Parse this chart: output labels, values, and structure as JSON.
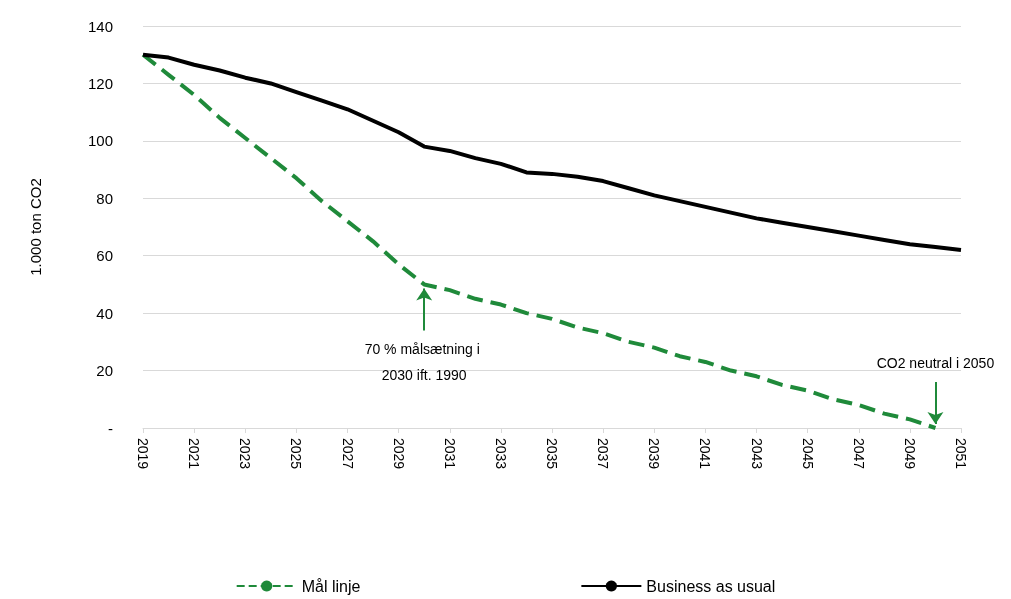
{
  "chart_data": {
    "type": "line",
    "ylabel": "1.000 ton CO2",
    "x": [
      2019,
      2020,
      2021,
      2022,
      2023,
      2024,
      2025,
      2026,
      2027,
      2028,
      2029,
      2030,
      2031,
      2032,
      2033,
      2034,
      2035,
      2036,
      2037,
      2038,
      2039,
      2040,
      2041,
      2042,
      2043,
      2044,
      2045,
      2046,
      2047,
      2048,
      2049,
      2050,
      2051
    ],
    "series": [
      {
        "name": "Mål linje",
        "color": "#1f8a3a",
        "line_style": "dashed",
        "values": [
          130,
          123,
          116,
          108,
          101,
          94,
          87,
          79,
          72,
          65,
          57,
          50,
          48,
          45,
          43,
          40,
          38,
          35,
          33,
          30,
          28,
          25,
          23,
          20,
          18,
          15,
          13,
          10,
          8,
          5,
          3,
          0,
          null
        ]
      },
      {
        "name": "Business as usual",
        "color": "#000000",
        "line_style": "solid",
        "values": [
          130,
          129,
          126.5,
          124.5,
          122,
          120,
          117,
          114,
          111,
          107,
          103,
          98,
          96.5,
          94,
          92,
          89,
          88.5,
          87.5,
          86,
          83.5,
          81,
          79,
          77,
          75,
          73,
          71.5,
          70,
          68.5,
          67,
          65.5,
          64,
          63,
          62
        ]
      }
    ],
    "xlim": [
      2019,
      2051
    ],
    "xticks": [
      2019,
      2021,
      2023,
      2025,
      2027,
      2029,
      2031,
      2033,
      2035,
      2037,
      2039,
      2041,
      2043,
      2045,
      2047,
      2049,
      2051
    ],
    "ylim": [
      0,
      140
    ],
    "yticks": [
      {
        "value": 0,
        "label": "-"
      },
      20,
      40,
      60,
      80,
      100,
      120,
      140
    ],
    "grid": "y",
    "legend": "bottom",
    "marker": "none",
    "annotations": [
      {
        "text": "70 % målsætning i 2030 ift. 1990",
        "x": 2030,
        "y": 50
      },
      {
        "text": "CO2 neutral i 2050",
        "x": 2050,
        "y": 0
      }
    ]
  }
}
